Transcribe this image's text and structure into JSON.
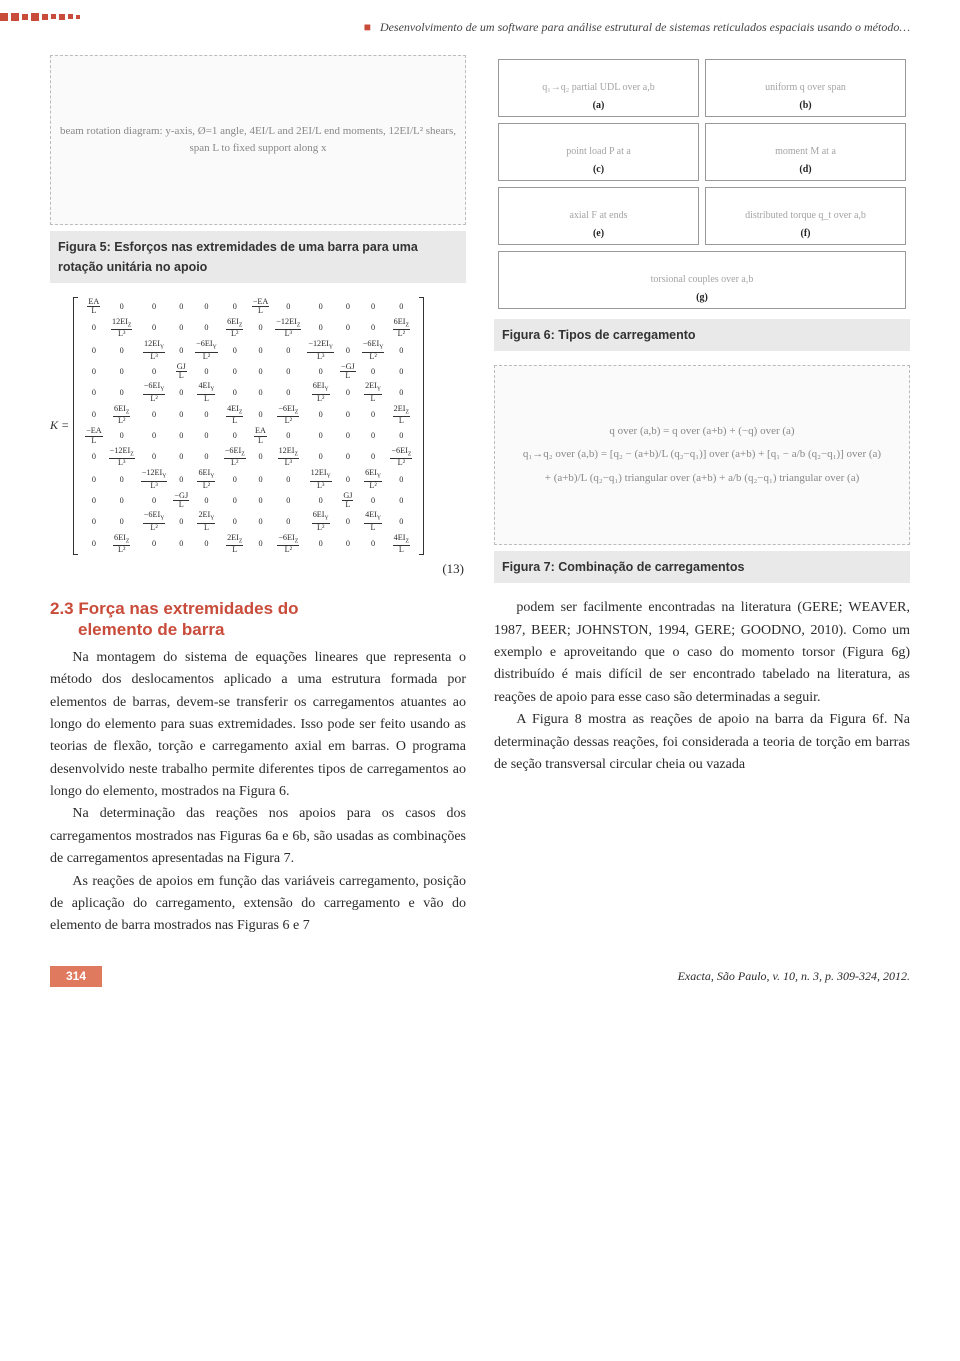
{
  "page": {
    "running_head": "Desenvolvimento de um software para análise estrutural de sistemas reticulados espaciais usando o método…",
    "page_number": "314",
    "footer_citation": "Exacta, São Paulo, v. 10, n. 3, p. 309-324, 2012."
  },
  "colors": {
    "accent": "#c94b3a",
    "caption_bg": "#e9e9e9",
    "text": "#2b2b2b"
  },
  "figure5": {
    "placeholder": "beam rotation diagram: y-axis, Ø=1 angle, 4EI/L and 2EI/L end moments, 12EI/L² shears, span L to fixed support along x",
    "caption": "Figura 5: Esforços nas extremidades de uma barra para uma rotação unitária no apoio",
    "labels": [
      "y",
      "x",
      "Ø=1",
      "4EI/L",
      "2EI/L",
      "12EI/L²",
      "12EI/L²",
      "L"
    ]
  },
  "stiffness_matrix": {
    "lead": "K =",
    "equation_number": "(13)",
    "rows": [
      [
        "EA/L",
        "0",
        "0",
        "0",
        "0",
        "0",
        "−EA/L",
        "0",
        "0",
        "0",
        "0",
        "0"
      ],
      [
        "0",
        "12EI_Z/L³",
        "0",
        "0",
        "0",
        "6EI_Z/L²",
        "0",
        "−12EI_Z/L³",
        "0",
        "0",
        "0",
        "6EI_Z/L²"
      ],
      [
        "0",
        "0",
        "12EI_Y/L³",
        "0",
        "−6EI_Y/L²",
        "0",
        "0",
        "0",
        "−12EI_Y/L³",
        "0",
        "−6EI_Y/L²",
        "0"
      ],
      [
        "0",
        "0",
        "0",
        "GJ/L",
        "0",
        "0",
        "0",
        "0",
        "0",
        "−GJ/L",
        "0",
        "0"
      ],
      [
        "0",
        "0",
        "−6EI_Y/L²",
        "0",
        "4EI_Y/L",
        "0",
        "0",
        "0",
        "6EI_Y/L²",
        "0",
        "2EI_Y/L",
        "0"
      ],
      [
        "0",
        "6EI_Z/L²",
        "0",
        "0",
        "0",
        "4EI_Z/L",
        "0",
        "−6EI_Z/L²",
        "0",
        "0",
        "0",
        "2EI_Z/L"
      ],
      [
        "−EA/L",
        "0",
        "0",
        "0",
        "0",
        "0",
        "EA/L",
        "0",
        "0",
        "0",
        "0",
        "0"
      ],
      [
        "0",
        "−12EI_Z/L³",
        "0",
        "0",
        "0",
        "−6EI_Z/L²",
        "0",
        "12EI_Z/L³",
        "0",
        "0",
        "0",
        "−6EI_Z/L²"
      ],
      [
        "0",
        "0",
        "−12EI_Y/L³",
        "0",
        "6EI_Y/L²",
        "0",
        "0",
        "0",
        "12EI_Y/L³",
        "0",
        "6EI_Y/L²",
        "0"
      ],
      [
        "0",
        "0",
        "0",
        "−GJ/L",
        "0",
        "0",
        "0",
        "0",
        "0",
        "GJ/L",
        "0",
        "0"
      ],
      [
        "0",
        "0",
        "−6EI_Y/L²",
        "0",
        "2EI_Y/L",
        "0",
        "0",
        "0",
        "6EI_Y/L²",
        "0",
        "4EI_Y/L",
        "0"
      ],
      [
        "0",
        "6EI_Z/L²",
        "0",
        "0",
        "0",
        "2EI_Z/L",
        "0",
        "−6EI_Z/L²",
        "0",
        "0",
        "0",
        "4EI_Z/L"
      ]
    ]
  },
  "section23": {
    "heading_num": "2.3",
    "heading_text": "Força nas extremidades do elemento de barra",
    "paragraphs": [
      "Na montagem do sistema de equações lineares que representa o método dos deslocamentos aplicado a uma estrutura formada por elementos de barras, devem-se transferir os carregamentos atuantes ao longo do elemento para suas extremidades. Isso pode ser feito usando as teorias de flexão, torção e carregamento axial em barras. O programa desenvolvido neste trabalho permite diferentes tipos de carregamentos ao longo do elemento, mostrados na Figura 6.",
      "Na determinação das reações nos apoios para os casos dos carregamentos mostrados nas Figuras 6a e 6b, são usadas as combinações de carregamentos apresentadas na Figura 7.",
      "As reações de apoios em função das variáveis carregamento, posição de aplicação do carregamento, extensão do carregamento e vão do elemento de barra mostrados nas Figuras 6 e 7"
    ]
  },
  "figure6": {
    "caption": "Figura 6: Tipos de carregamento",
    "cells": [
      {
        "lab": "(a)",
        "desc": "q₁→q₂ partial UDL over a,b"
      },
      {
        "lab": "(b)",
        "desc": "uniform q over span"
      },
      {
        "lab": "(c)",
        "desc": "point load P at a"
      },
      {
        "lab": "(d)",
        "desc": "moment M at a"
      },
      {
        "lab": "(e)",
        "desc": "axial F at ends"
      },
      {
        "lab": "(f)",
        "desc": "distributed torque q_t over a,b"
      },
      {
        "lab": "(g)",
        "desc": "torsional couples over a,b"
      }
    ]
  },
  "figure7": {
    "caption": "Figura 7: Combinação de carregamentos",
    "lines": [
      "q over (a,b) = q over (a+b) + (−q) over (a)",
      "q₁→q₂ over (a,b) = [q₂ − (a+b)/L (q₂−q₁)] over (a+b) + [q₁ − a/b (q₂−q₁)] over (a)",
      "+ (a+b)/L (q₂−q₁) triangular over (a+b) + a/b (q₂−q₁) triangular over (a)"
    ]
  },
  "rightcol_continuation": [
    "podem ser facilmente encontradas na literatura (GERE; WEAVER, 1987, BEER; JOHNSTON, 1994, GERE; GOODNO, 2010). Como um exemplo e aproveitando que o caso do momento torsor (Figura 6g) distribuído é mais difícil de ser encontrado tabelado na literatura, as reações de apoio para esse caso são determinadas a seguir.",
    "A Figura 8 mostra as reações de apoio na barra da Figura 6f. Na determinação dessas reações, foi considerada a teoria de torção em barras de seção transversal circular cheia ou vazada"
  ]
}
